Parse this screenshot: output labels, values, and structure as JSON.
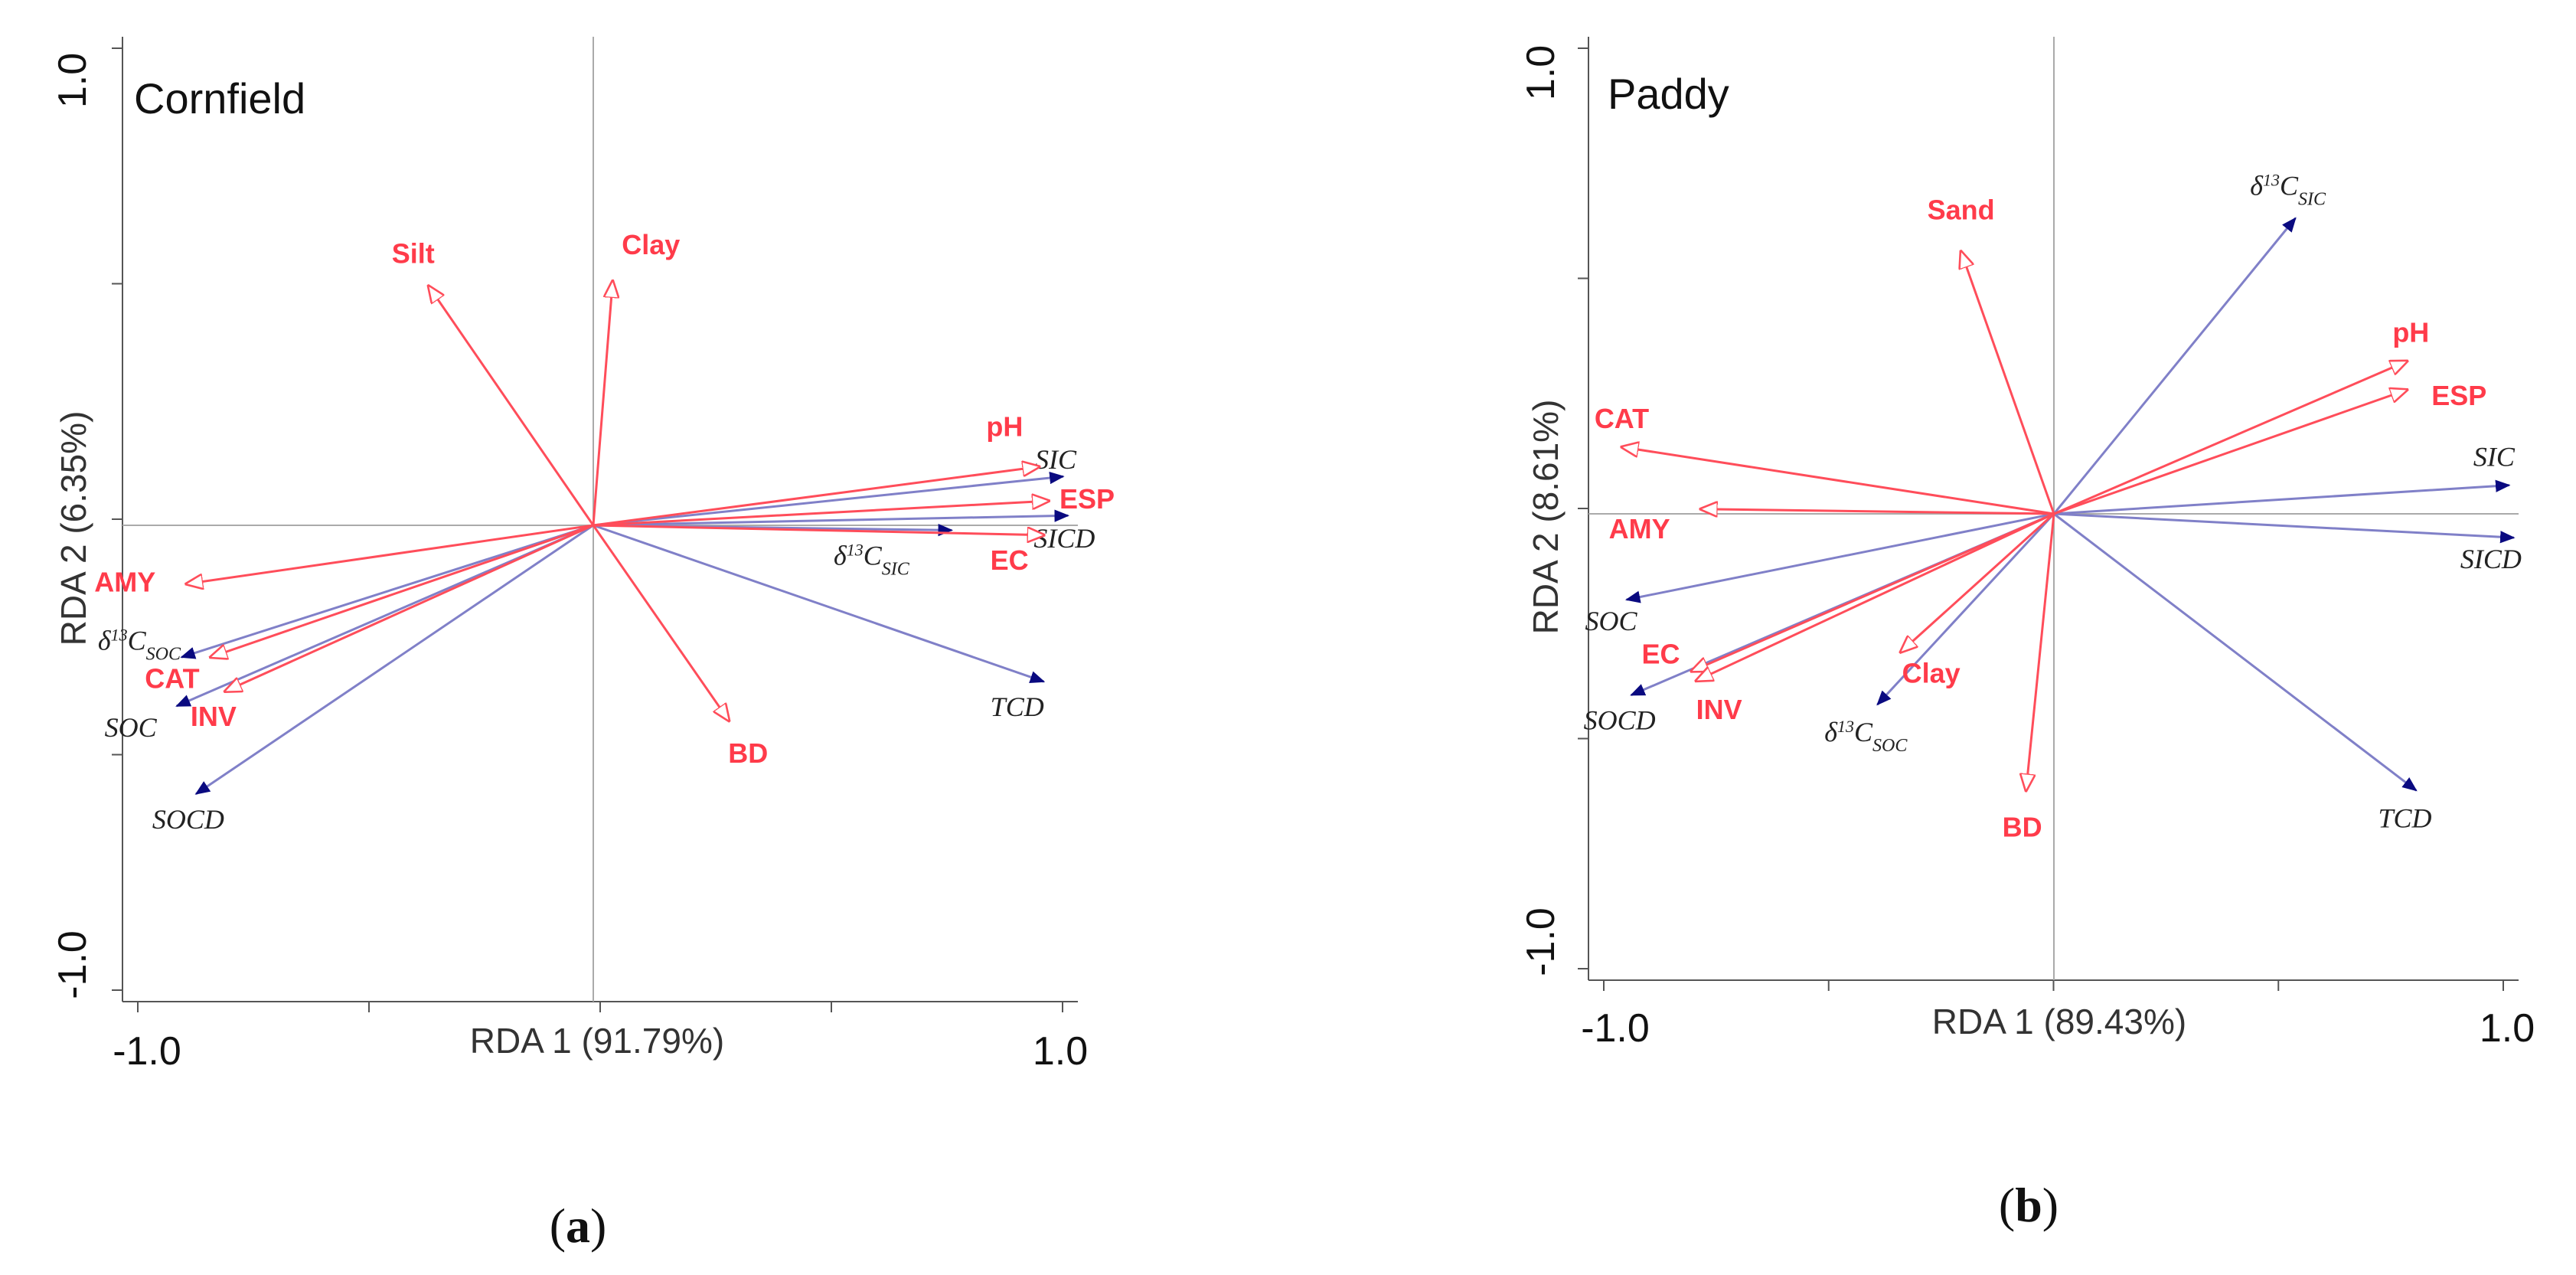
{
  "chart_data": [
    {
      "type": "biplot",
      "panel_label": "a",
      "title": "Cornfield",
      "xlabel": "RDA 1 (91.79%)",
      "ylabel": "RDA 2 (6.35%)",
      "xlim": [
        -1.0,
        1.0
      ],
      "ylim": [
        -1.0,
        1.0
      ],
      "x_tick_labels": [
        "-1.0",
        "1.0"
      ],
      "y_tick_labels": [
        "1.0",
        "-1.0"
      ],
      "environmental_vectors": [
        {
          "name": "Silt",
          "x": -0.34,
          "y": 0.49
        },
        {
          "name": "Clay",
          "x": 0.04,
          "y": 0.5
        },
        {
          "name": "pH",
          "x": 0.92,
          "y": 0.12
        },
        {
          "name": "ESP",
          "x": 0.94,
          "y": 0.05
        },
        {
          "name": "EC",
          "x": 0.93,
          "y": -0.02
        },
        {
          "name": "BD",
          "x": 0.28,
          "y": -0.4
        },
        {
          "name": "AMY",
          "x": -0.84,
          "y": -0.12
        },
        {
          "name": "CAT",
          "x": -0.79,
          "y": -0.27
        },
        {
          "name": "INV",
          "x": -0.76,
          "y": -0.34
        }
      ],
      "response_vectors": [
        {
          "name": "SIC",
          "x": 0.97,
          "y": 0.1
        },
        {
          "name": "SICD",
          "x": 0.98,
          "y": 0.02
        },
        {
          "name": "δ13C_SIC",
          "x": 0.74,
          "y": -0.01
        },
        {
          "name": "TCD",
          "x": 0.93,
          "y": -0.32
        },
        {
          "name": "δ13C_SOC",
          "x": -0.85,
          "y": -0.27
        },
        {
          "name": "SOC",
          "x": -0.86,
          "y": -0.37
        },
        {
          "name": "SOCD",
          "x": -0.82,
          "y": -0.55
        }
      ]
    },
    {
      "type": "biplot",
      "panel_label": "b",
      "title": "Paddy",
      "xlabel": "RDA 1 (89.43%)",
      "ylabel": "RDA 2 (8.61%)",
      "xlim": [
        -1.0,
        1.0
      ],
      "ylim": [
        -1.0,
        1.0
      ],
      "x_tick_labels": [
        "-1.0",
        "1.0"
      ],
      "y_tick_labels": [
        "1.0",
        "-1.0"
      ],
      "environmental_vectors": [
        {
          "name": "Sand",
          "x": -0.2,
          "y": 0.55
        },
        {
          "name": "pH",
          "x": 0.76,
          "y": 0.32
        },
        {
          "name": "ESP",
          "x": 0.76,
          "y": 0.26
        },
        {
          "name": "CAT",
          "x": -0.93,
          "y": 0.14
        },
        {
          "name": "AMY",
          "x": -0.76,
          "y": 0.01
        },
        {
          "name": "EC",
          "x": -0.78,
          "y": -0.33
        },
        {
          "name": "INV",
          "x": -0.77,
          "y": -0.35
        },
        {
          "name": "Clay",
          "x": -0.33,
          "y": -0.29
        },
        {
          "name": "BD",
          "x": -0.06,
          "y": -0.58
        }
      ],
      "response_vectors": [
        {
          "name": "δ13C_SIC",
          "x": 0.52,
          "y": 0.62
        },
        {
          "name": "SIC",
          "x": 0.98,
          "y": 0.06
        },
        {
          "name": "SICD",
          "x": 0.99,
          "y": -0.05
        },
        {
          "name": "TCD",
          "x": 0.78,
          "y": -0.58
        },
        {
          "name": "SOC",
          "x": -0.92,
          "y": -0.18
        },
        {
          "name": "SOCD",
          "x": -0.91,
          "y": -0.38
        },
        {
          "name": "δ13C_SOC",
          "x": -0.38,
          "y": -0.4
        }
      ]
    }
  ],
  "colors": {
    "environmental": "#ff4d5a",
    "response_line": "#8080c8",
    "response_head": "#0a0a80",
    "axis": "#555555",
    "crosshair": "#aaaaaa"
  }
}
